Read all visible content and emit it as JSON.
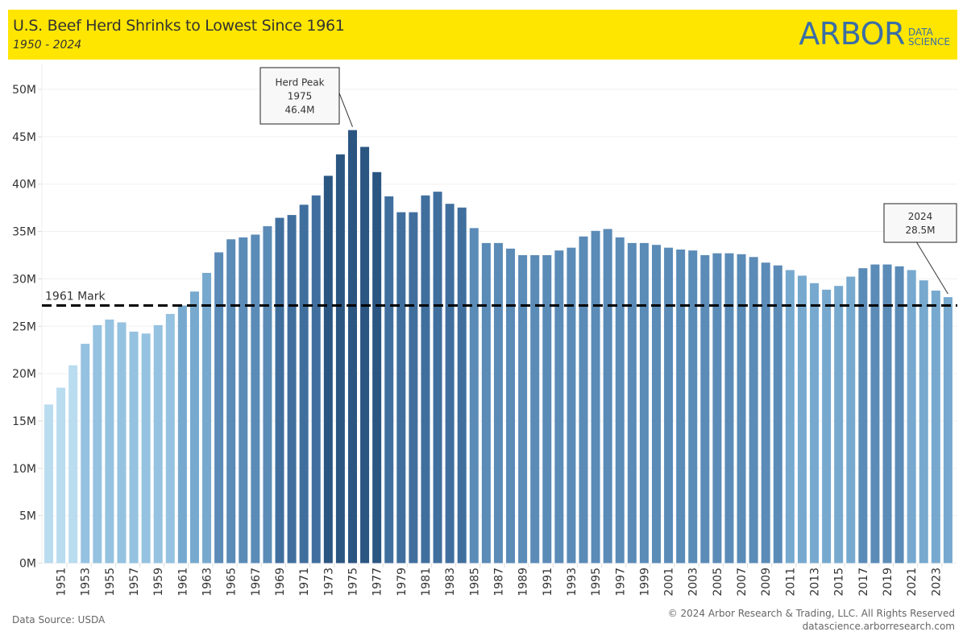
{
  "header": {
    "title": "U.S. Beef Herd Shrinks to Lowest Since 1961",
    "subtitle": "1950 - 2024",
    "logo_main": "ARBOR",
    "logo_sub_line1": "DATA",
    "logo_sub_line2": "SCIENCE",
    "background_color": "#ffe600",
    "logo_color": "#3a6ea5"
  },
  "footer": {
    "source": "Data Source: USDA",
    "copyright": "© 2024 Arbor Research & Trading, LLC. All Rights Reserved",
    "website": "datascience.arborresearch.com"
  },
  "chart_data": {
    "type": "bar",
    "title": "U.S. Beef Herd Shrinks to Lowest Since 1961",
    "subtitle": "1950 - 2024",
    "xlabel": "",
    "ylabel": "",
    "ylim": [
      0,
      50
    ],
    "y_unit_suffix": "M",
    "y_ticks": [
      0,
      5,
      10,
      15,
      20,
      25,
      30,
      35,
      40,
      45,
      50
    ],
    "y_tick_labels": [
      "0M",
      "5M",
      "10M",
      "15M",
      "20M",
      "25M",
      "30M",
      "35M",
      "40M",
      "45M",
      "50M"
    ],
    "grid": true,
    "x_label_every": 2,
    "x_label_start": 1951,
    "categories": [
      1950,
      1951,
      1952,
      1953,
      1954,
      1955,
      1956,
      1957,
      1958,
      1959,
      1960,
      1961,
      1962,
      1963,
      1964,
      1965,
      1966,
      1967,
      1968,
      1969,
      1970,
      1971,
      1972,
      1973,
      1974,
      1975,
      1976,
      1977,
      1978,
      1979,
      1980,
      1981,
      1982,
      1983,
      1984,
      1985,
      1986,
      1987,
      1988,
      1989,
      1990,
      1991,
      1992,
      1993,
      1994,
      1995,
      1996,
      1997,
      1998,
      1999,
      2000,
      2001,
      2002,
      2003,
      2004,
      2005,
      2006,
      2007,
      2008,
      2009,
      2010,
      2011,
      2012,
      2013,
      2014,
      2015,
      2016,
      2017,
      2018,
      2019,
      2020,
      2021,
      2022,
      2023,
      2024
    ],
    "values": [
      17.0,
      18.8,
      21.2,
      23.5,
      25.5,
      26.1,
      25.8,
      24.8,
      24.6,
      25.5,
      26.7,
      27.6,
      29.1,
      31.1,
      33.3,
      34.7,
      34.9,
      35.2,
      36.1,
      37.0,
      37.3,
      38.4,
      39.4,
      41.5,
      43.8,
      46.4,
      44.6,
      41.9,
      39.3,
      37.6,
      37.6,
      39.4,
      39.8,
      38.5,
      38.1,
      35.9,
      34.3,
      34.3,
      33.7,
      33.0,
      33.0,
      33.0,
      33.5,
      33.8,
      35.0,
      35.6,
      35.8,
      34.9,
      34.3,
      34.3,
      34.1,
      33.8,
      33.6,
      33.5,
      33.0,
      33.2,
      33.2,
      33.1,
      32.8,
      32.2,
      31.9,
      31.4,
      30.8,
      30.0,
      29.3,
      29.7,
      30.7,
      31.6,
      32.0,
      32.0,
      31.8,
      31.4,
      30.3,
      29.2,
      28.5
    ],
    "color_bins": [
      {
        "max": 22,
        "color": "#b9dcef"
      },
      {
        "max": 27,
        "color": "#95c2e0"
      },
      {
        "max": 31.5,
        "color": "#77a9cf"
      },
      {
        "max": 36.5,
        "color": "#5b8bb7"
      },
      {
        "max": 40,
        "color": "#406f9e"
      },
      {
        "max": 100,
        "color": "#2b5682"
      }
    ],
    "reference_line": {
      "label": "1961 Mark",
      "value": 27.6,
      "style": "dashed",
      "color": "#000000"
    },
    "annotations": [
      {
        "year": 1975,
        "lines": [
          "Herd Peak",
          "1975",
          "46.4M"
        ]
      },
      {
        "year": 2024,
        "lines": [
          "2024",
          "28.5M"
        ]
      }
    ]
  }
}
